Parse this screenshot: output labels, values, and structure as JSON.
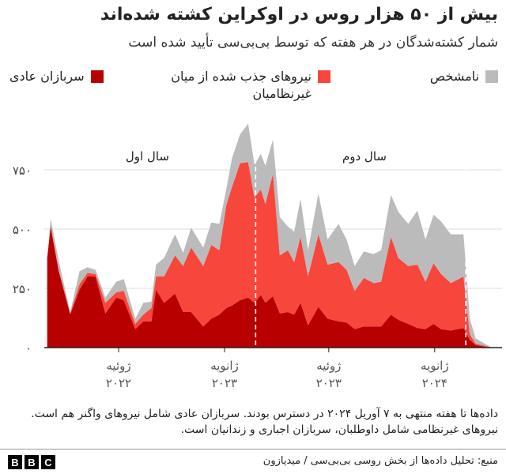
{
  "title": "بیش از ۵۰ هزار روس در اوکراین کشته شده‌اند",
  "subtitle": "شمار کشته‌شدگان در هر هفته که توسط بی‌بی‌سی تأیید شده است",
  "colors": {
    "regular": "#b80000",
    "mobilised": "#f7463c",
    "unknown": "#bbbbbb"
  },
  "legend": [
    {
      "key": "unknown",
      "label": "نامشخص"
    },
    {
      "key": "mobilised",
      "label": "نیروهای جذب شده از میان غیرنظامیان"
    },
    {
      "key": "regular",
      "label": "سربازان عادی"
    }
  ],
  "chart_data": {
    "type": "area",
    "stacked": true,
    "title": "",
    "xlabel": "",
    "ylabel": "",
    "ylim": [
      0,
      950
    ],
    "grid": true,
    "yticks": [
      0,
      250,
      500,
      750
    ],
    "ytick_labels": [
      "۰",
      "۲۵۰",
      "۵۰۰",
      "۷۵۰"
    ],
    "xticks": [
      {
        "date": "2022-07-01",
        "label1": "ژوئیه",
        "label2": "۲۰۲۲"
      },
      {
        "date": "2023-01-01",
        "label1": "ژانویه",
        "label2": "۲۰۲۳"
      },
      {
        "date": "2023-07-01",
        "label1": "ژوئیه",
        "label2": "۲۰۲۳"
      },
      {
        "date": "2024-01-01",
        "label1": "ژانویه",
        "label2": "۲۰۲۴"
      }
    ],
    "annotations": [
      {
        "label": "سال اول",
        "date": "2022-08-20"
      },
      {
        "label": "سال دوم",
        "date": "2023-09-01"
      }
    ],
    "markers": [
      "2023-02-24",
      "2024-02-24"
    ],
    "x": [
      "2022-02-27",
      "2022-03-05",
      "2022-03-19",
      "2022-04-08",
      "2022-04-24",
      "2022-05-08",
      "2022-05-22",
      "2022-06-08",
      "2022-06-27",
      "2022-07-10",
      "2022-07-30",
      "2022-08-13",
      "2022-08-27",
      "2022-09-04",
      "2022-09-18",
      "2022-10-07",
      "2022-10-21",
      "2022-11-04",
      "2022-11-25",
      "2022-12-09",
      "2022-12-23",
      "2023-01-04",
      "2023-01-14",
      "2023-01-28",
      "2023-02-11",
      "2023-02-22",
      "2023-03-05",
      "2023-03-13",
      "2023-03-26",
      "2023-04-07",
      "2023-04-21",
      "2023-05-02",
      "2023-05-13",
      "2023-05-26",
      "2023-06-13",
      "2023-06-29",
      "2023-07-18",
      "2023-08-01",
      "2023-08-15",
      "2023-08-31",
      "2023-09-17",
      "2023-09-30",
      "2023-10-17",
      "2023-10-30",
      "2023-11-16",
      "2023-12-02",
      "2023-12-16",
      "2023-12-30",
      "2024-01-12",
      "2024-01-29",
      "2024-02-20",
      "2024-03-02",
      "2024-03-12",
      "2024-04-07"
    ],
    "series": [
      {
        "name": "سربازان عادی",
        "key": "regular",
        "values": [
          378,
          510,
          322,
          140,
          244,
          300,
          300,
          144,
          211,
          200,
          78,
          111,
          111,
          244,
          189,
          228,
          150,
          150,
          89,
          122,
          139,
          167,
          178,
          200,
          211,
          189,
          222,
          189,
          217,
          144,
          150,
          139,
          189,
          94,
          172,
          122,
          111,
          106,
          78,
          89,
          89,
          89,
          139,
          117,
          100,
          83,
          78,
          100,
          78,
          72,
          83,
          33,
          11,
          0
        ]
      },
      {
        "name": "نیروهای جذب شده از میان غیرنظامیان",
        "key": "mobilised",
        "values": [
          0,
          5,
          6,
          5,
          23,
          15,
          10,
          45,
          22,
          40,
          22,
          28,
          56,
          56,
          111,
          161,
          194,
          272,
          255,
          311,
          272,
          433,
          500,
          578,
          572,
          444,
          445,
          417,
          516,
          245,
          261,
          222,
          278,
          206,
          306,
          228,
          250,
          222,
          161,
          205,
          183,
          189,
          328,
          261,
          244,
          267,
          200,
          256,
          233,
          200,
          217,
          23,
          6,
          2
        ]
      },
      {
        "name": "نامشخص",
        "key": "unknown",
        "values": [
          0,
          30,
          39,
          5,
          55,
          24,
          18,
          22,
          45,
          49,
          22,
          50,
          27,
          50,
          78,
          89,
          56,
          84,
          78,
          95,
          111,
          67,
          122,
          122,
          161,
          139,
          150,
          161,
          145,
          161,
          100,
          128,
          161,
          111,
          172,
          106,
          161,
          128,
          105,
          112,
          122,
          133,
          177,
          194,
          178,
          228,
          178,
          205,
          222,
          206,
          178,
          66,
          22,
          1
        ]
      }
    ]
  },
  "note": "داده‌ها تا هفته منتهی به ۷ آوریل ۲۰۲۴ در دسترس بودند. سربازان عادی شامل نیروهای واگنر هم است. نیروهای غیرنظامی شامل داوطلبان، سربازان اجباری و زندانیان است.",
  "source": "منبع: تحلیل داده‌ها از بخش روسی بی‌بی‌سی / میدیازون",
  "logo": [
    "B",
    "B",
    "C"
  ]
}
